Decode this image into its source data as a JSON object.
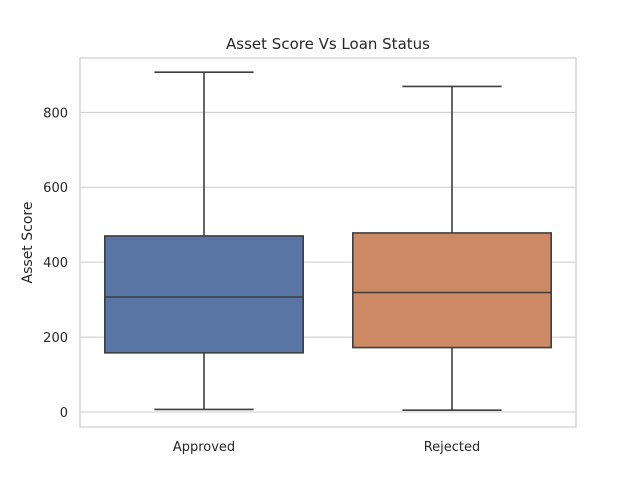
{
  "chart_data": {
    "type": "box",
    "title": "Asset Score Vs Loan Status",
    "xlabel": "",
    "ylabel": "Asset Score",
    "categories": [
      "Approved",
      "Rejected"
    ],
    "boxes": [
      {
        "category": "Approved",
        "min": 7,
        "q1": 158,
        "median": 307,
        "q3": 470,
        "max": 907,
        "color": "#5875a4"
      },
      {
        "category": "Rejected",
        "min": 5,
        "q1": 172,
        "median": 319,
        "q3": 478,
        "max": 869,
        "color": "#cc8963"
      }
    ],
    "y_ticks": [
      0,
      200,
      400,
      600,
      800
    ],
    "ylim": [
      -40,
      945
    ],
    "grid": "horizontal",
    "legend": "none"
  }
}
